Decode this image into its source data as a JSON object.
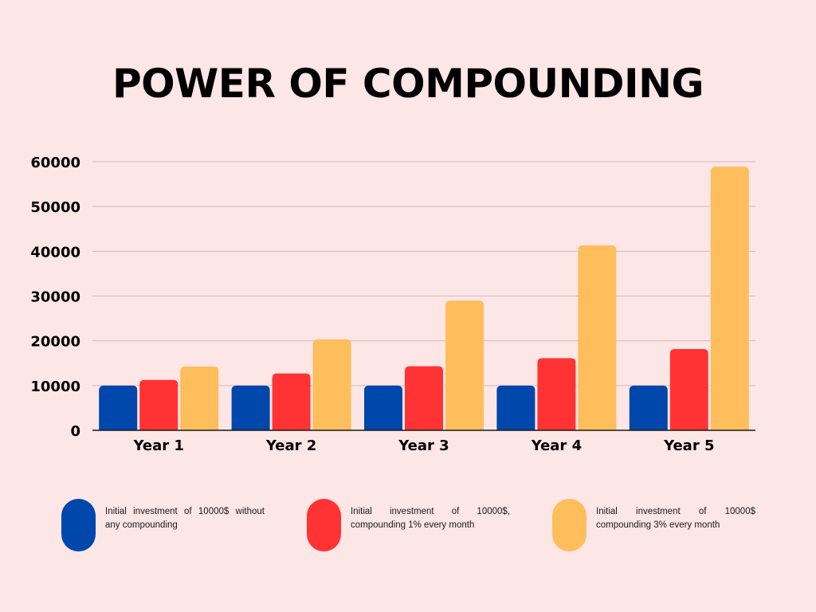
{
  "title": "POWER OF COMPOUNDING",
  "colors": {
    "background": "#fde6e6",
    "gridline": "#d9b9bd",
    "series": [
      "#0047ab",
      "#ff3333",
      "#ffbe5c"
    ]
  },
  "chart_data": {
    "type": "bar",
    "title": "POWER OF COMPOUNDING",
    "xlabel": "",
    "ylabel": "",
    "categories": [
      "Year 1",
      "Year 2",
      "Year 3",
      "Year 4",
      "Year 5"
    ],
    "ylim": [
      0,
      60000
    ],
    "yticks": [
      0,
      10000,
      20000,
      30000,
      40000,
      50000,
      60000
    ],
    "grid": true,
    "legend_position": "bottom",
    "series": [
      {
        "name": "Initial investment of 10000$ without any compounding",
        "values": [
          10000,
          10000,
          10000,
          10000,
          10000
        ]
      },
      {
        "name": "Initial investment of 10000$, compounding 1% every month",
        "values": [
          11268,
          12697,
          14308,
          16122,
          18167
        ]
      },
      {
        "name": "Initial investment of 10000$ compounding 3% every month",
        "values": [
          14258,
          20328,
          28983,
          41323,
          58916
        ]
      }
    ]
  },
  "legend": [
    {
      "text": "Initial investment of 10000$ without any compounding",
      "color": "#0047ab"
    },
    {
      "text": "Initial investment of 10000$, compounding 1% every month",
      "color": "#ff3333"
    },
    {
      "text": "Initial investment of 10000$ compounding 3% every month",
      "color": "#ffbe5c"
    }
  ]
}
